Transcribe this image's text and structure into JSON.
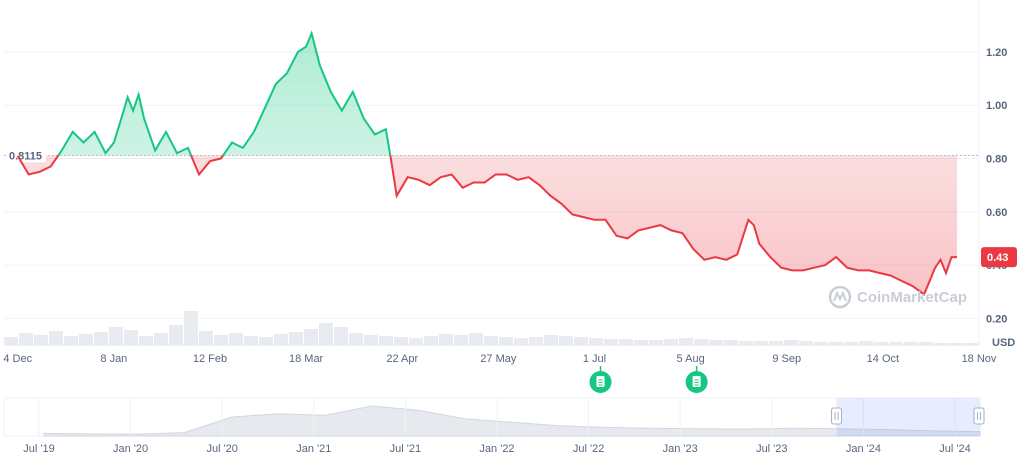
{
  "chart_data": {
    "type": "line",
    "currency_label": "USD",
    "reference_value": 0.8115,
    "reference_label": "0.8115",
    "current_value": 0.43,
    "current_label": "0.43",
    "colors": {
      "up": "#16c784",
      "down": "#ea3943",
      "grid": "#eff2f5",
      "reference": "#b4bcc7"
    },
    "ylim": [
      0.1,
      1.35
    ],
    "yticks": [
      "0.20",
      "0.40",
      "0.60",
      "0.80",
      "1.00",
      "1.20"
    ],
    "xticks": [
      "4 Dec",
      "8 Jan",
      "12 Feb",
      "18 Mar",
      "22 Apr",
      "27 May",
      "1 Jul",
      "5 Aug",
      "9 Sep",
      "14 Oct",
      "18 Nov"
    ],
    "xlim": [
      -5,
      350
    ],
    "points": [
      [
        0,
        0.81
      ],
      [
        4,
        0.74
      ],
      [
        8,
        0.75
      ],
      [
        12,
        0.77
      ],
      [
        16,
        0.83
      ],
      [
        20,
        0.9
      ],
      [
        24,
        0.86
      ],
      [
        28,
        0.9
      ],
      [
        32,
        0.82
      ],
      [
        35,
        0.86
      ],
      [
        38,
        0.96
      ],
      [
        40,
        1.03
      ],
      [
        42,
        0.98
      ],
      [
        44,
        1.04
      ],
      [
        46,
        0.95
      ],
      [
        50,
        0.83
      ],
      [
        54,
        0.9
      ],
      [
        58,
        0.82
      ],
      [
        62,
        0.84
      ],
      [
        66,
        0.74
      ],
      [
        70,
        0.79
      ],
      [
        74,
        0.8
      ],
      [
        78,
        0.86
      ],
      [
        82,
        0.84
      ],
      [
        86,
        0.9
      ],
      [
        90,
        0.99
      ],
      [
        94,
        1.08
      ],
      [
        98,
        1.12
      ],
      [
        102,
        1.2
      ],
      [
        105,
        1.22
      ],
      [
        107,
        1.27
      ],
      [
        110,
        1.15
      ],
      [
        114,
        1.05
      ],
      [
        118,
        0.98
      ],
      [
        122,
        1.05
      ],
      [
        126,
        0.95
      ],
      [
        130,
        0.89
      ],
      [
        134,
        0.91
      ],
      [
        136,
        0.79
      ],
      [
        138,
        0.66
      ],
      [
        142,
        0.73
      ],
      [
        146,
        0.72
      ],
      [
        150,
        0.7
      ],
      [
        154,
        0.73
      ],
      [
        158,
        0.74
      ],
      [
        162,
        0.69
      ],
      [
        166,
        0.71
      ],
      [
        170,
        0.71
      ],
      [
        174,
        0.74
      ],
      [
        178,
        0.74
      ],
      [
        182,
        0.72
      ],
      [
        186,
        0.73
      ],
      [
        190,
        0.7
      ],
      [
        194,
        0.66
      ],
      [
        198,
        0.63
      ],
      [
        202,
        0.59
      ],
      [
        206,
        0.58
      ],
      [
        210,
        0.57
      ],
      [
        214,
        0.57
      ],
      [
        218,
        0.51
      ],
      [
        222,
        0.5
      ],
      [
        226,
        0.53
      ],
      [
        230,
        0.54
      ],
      [
        234,
        0.55
      ],
      [
        238,
        0.53
      ],
      [
        242,
        0.52
      ],
      [
        246,
        0.46
      ],
      [
        250,
        0.42
      ],
      [
        254,
        0.43
      ],
      [
        258,
        0.42
      ],
      [
        262,
        0.44
      ],
      [
        266,
        0.57
      ],
      [
        268,
        0.55
      ],
      [
        270,
        0.48
      ],
      [
        274,
        0.43
      ],
      [
        278,
        0.39
      ],
      [
        282,
        0.38
      ],
      [
        286,
        0.38
      ],
      [
        290,
        0.39
      ],
      [
        294,
        0.4
      ],
      [
        298,
        0.43
      ],
      [
        302,
        0.39
      ],
      [
        306,
        0.38
      ],
      [
        310,
        0.38
      ],
      [
        314,
        0.37
      ],
      [
        318,
        0.36
      ],
      [
        322,
        0.34
      ],
      [
        326,
        0.32
      ],
      [
        330,
        0.29
      ],
      [
        334,
        0.39
      ],
      [
        336,
        0.42
      ],
      [
        338,
        0.37
      ],
      [
        340,
        0.43
      ],
      [
        342,
        0.43
      ]
    ]
  },
  "volume": {
    "values": [
      8,
      12,
      10,
      14,
      9,
      11,
      13,
      18,
      15,
      9,
      12,
      20,
      34,
      14,
      10,
      12,
      9,
      8,
      11,
      13,
      16,
      22,
      18,
      12,
      10,
      9,
      8,
      7,
      9,
      11,
      10,
      12,
      9,
      8,
      7,
      8,
      10,
      9,
      8,
      7,
      6,
      6,
      5,
      5,
      6,
      7,
      6,
      5,
      5,
      4,
      4,
      4,
      5,
      4,
      3,
      3,
      3,
      4,
      3,
      3,
      3,
      3,
      2,
      2,
      2
    ]
  },
  "navigator": {
    "xticks": [
      "Jul '19",
      "Jan '20",
      "Jul '20",
      "Jan '21",
      "Jul '21",
      "Jan '22",
      "Jul '22",
      "Jan '23",
      "Jul '23",
      "Jan '24",
      "Jul '24"
    ],
    "values": [
      0.3,
      0.25,
      0.22,
      0.4,
      2.2,
      2.6,
      2.4,
      3.5,
      3.0,
      2.0,
      1.6,
      1.2,
      1.0,
      0.9,
      0.85,
      0.8,
      0.9,
      0.85,
      0.75,
      0.6,
      0.5
    ],
    "selection": [
      0.853,
      1.0
    ]
  },
  "events": {
    "dates": [
      "1 Jul",
      "5 Aug"
    ],
    "icon": "document-icon"
  },
  "watermark": {
    "text": "CoinMarketCap"
  }
}
